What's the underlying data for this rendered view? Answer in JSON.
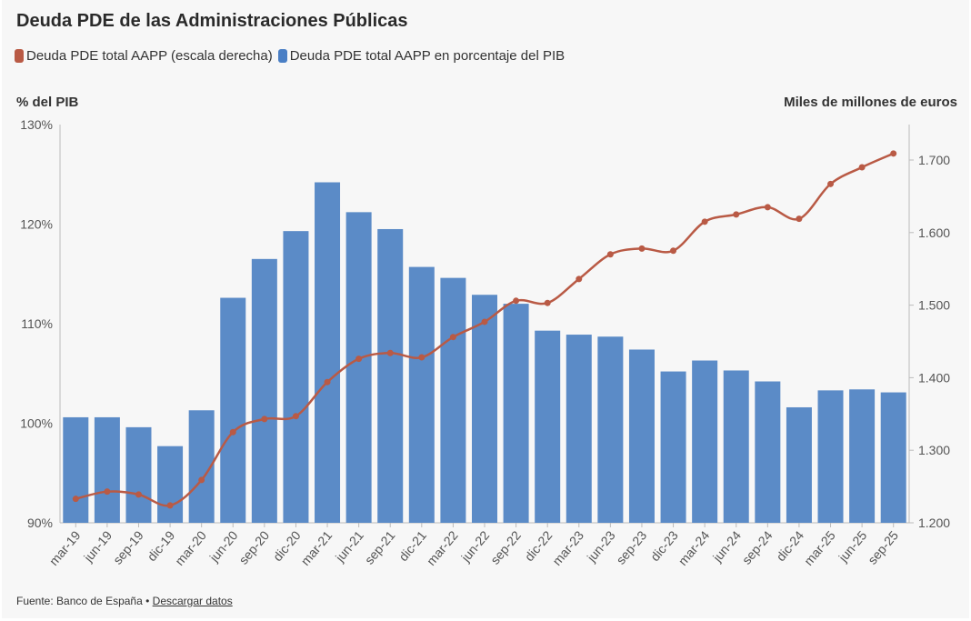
{
  "chart_data": {
    "type": "bar+line",
    "title": "Deuda PDE de las Administraciones Públicas",
    "left_axis_label": "% del PIB",
    "right_axis_label": "Miles de millones de euros",
    "categories": [
      "mar-19",
      "jun-19",
      "sep-19",
      "dic-19",
      "mar-20",
      "jun-20",
      "sep-20",
      "dic-20",
      "mar-21",
      "jun-21",
      "sep-21",
      "dic-21",
      "mar-22",
      "jun-22",
      "sep-22",
      "dic-22",
      "mar-23",
      "jun-23",
      "sep-23",
      "dic-23",
      "mar-24",
      "jun-24",
      "sep-24",
      "dic-24",
      "mar-25",
      "jun-25",
      "sep-25"
    ],
    "series": [
      {
        "name": "Deuda PDE total AAPP (escala derecha)",
        "type": "line",
        "axis": "right",
        "color": "#b95a45",
        "values": [
          1233,
          1243,
          1239,
          1224,
          1259,
          1325,
          1343,
          1347,
          1394,
          1426,
          1434,
          1428,
          1456,
          1477,
          1506,
          1503,
          1536,
          1570,
          1578,
          1575,
          1615,
          1625,
          1635,
          1619,
          1667,
          1690,
          1709
        ]
      },
      {
        "name": "Deuda PDE total AAPP en porcentaje del PIB",
        "type": "bar",
        "axis": "left",
        "color": "#5b8bc7",
        "values": [
          100.6,
          100.6,
          99.6,
          97.7,
          101.3,
          112.6,
          116.5,
          119.3,
          124.2,
          121.2,
          119.5,
          115.7,
          114.6,
          112.9,
          112.0,
          109.3,
          108.9,
          108.7,
          107.4,
          105.2,
          106.3,
          105.3,
          104.2,
          101.6,
          103.3,
          103.4,
          103.1
        ]
      }
    ],
    "left_axis": {
      "ylim": [
        90,
        130
      ],
      "ticks": [
        "90%",
        "100%",
        "110%",
        "120%",
        "130%"
      ]
    },
    "right_axis": {
      "ylim": [
        1200,
        1750
      ],
      "ticks": [
        "1.200",
        "1.300",
        "1.400",
        "1.500",
        "1.600",
        "1.700"
      ]
    },
    "grid": false,
    "legend": "top-left"
  },
  "footer": {
    "source": "Fuente: Banco de España •",
    "download_link": "Descargar datos"
  }
}
